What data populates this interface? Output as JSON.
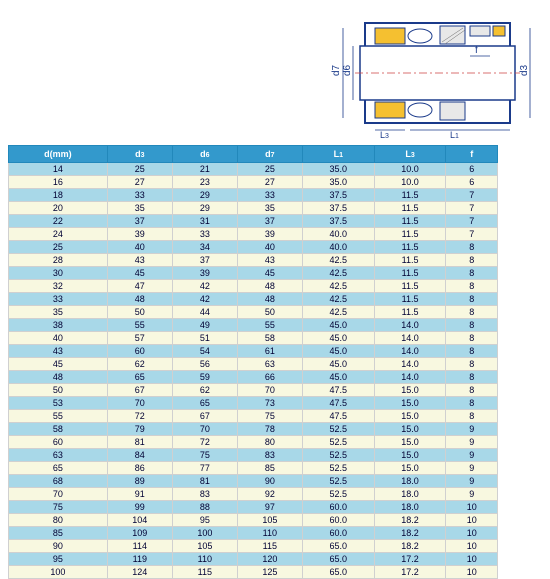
{
  "diagram": {
    "labels": {
      "d7": "d7",
      "d6": "d6",
      "d3": "d3",
      "f": "f",
      "L3": "L3",
      "L1": "L1"
    },
    "colors": {
      "outline": "#1a3a8a",
      "center_line": "#cc4444",
      "yellow_part": "#f5c030",
      "white_fill": "#ffffff",
      "hatch": "#666666"
    }
  },
  "table": {
    "headers": [
      "d(mm)",
      "d3",
      "d6",
      "d7",
      "L1",
      "L3",
      "f"
    ],
    "header_bg": "#3399cc",
    "header_color": "#ffffff",
    "row_blue": "#a8d8e8",
    "row_cream": "#f8f8e0",
    "border_color": "#d0d0d0",
    "text_color": "#000033",
    "rows": [
      [
        "14",
        "25",
        "21",
        "25",
        "35.0",
        "10.0",
        "6"
      ],
      [
        "16",
        "27",
        "23",
        "27",
        "35.0",
        "10.0",
        "6"
      ],
      [
        "18",
        "33",
        "29",
        "33",
        "37.5",
        "11.5",
        "7"
      ],
      [
        "20",
        "35",
        "29",
        "35",
        "37.5",
        "11.5",
        "7"
      ],
      [
        "22",
        "37",
        "31",
        "37",
        "37.5",
        "11.5",
        "7"
      ],
      [
        "24",
        "39",
        "33",
        "39",
        "40.0",
        "11.5",
        "7"
      ],
      [
        "25",
        "40",
        "34",
        "40",
        "40.0",
        "11.5",
        "8"
      ],
      [
        "28",
        "43",
        "37",
        "43",
        "42.5",
        "11.5",
        "8"
      ],
      [
        "30",
        "45",
        "39",
        "45",
        "42.5",
        "11.5",
        "8"
      ],
      [
        "32",
        "47",
        "42",
        "48",
        "42.5",
        "11.5",
        "8"
      ],
      [
        "33",
        "48",
        "42",
        "48",
        "42.5",
        "11.5",
        "8"
      ],
      [
        "35",
        "50",
        "44",
        "50",
        "42.5",
        "11.5",
        "8"
      ],
      [
        "38",
        "55",
        "49",
        "55",
        "45.0",
        "14.0",
        "8"
      ],
      [
        "40",
        "57",
        "51",
        "58",
        "45.0",
        "14.0",
        "8"
      ],
      [
        "43",
        "60",
        "54",
        "61",
        "45.0",
        "14.0",
        "8"
      ],
      [
        "45",
        "62",
        "56",
        "63",
        "45.0",
        "14.0",
        "8"
      ],
      [
        "48",
        "65",
        "59",
        "66",
        "45.0",
        "14.0",
        "8"
      ],
      [
        "50",
        "67",
        "62",
        "70",
        "47.5",
        "15.0",
        "8"
      ],
      [
        "53",
        "70",
        "65",
        "73",
        "47.5",
        "15.0",
        "8"
      ],
      [
        "55",
        "72",
        "67",
        "75",
        "47.5",
        "15.0",
        "8"
      ],
      [
        "58",
        "79",
        "70",
        "78",
        "52.5",
        "15.0",
        "9"
      ],
      [
        "60",
        "81",
        "72",
        "80",
        "52.5",
        "15.0",
        "9"
      ],
      [
        "63",
        "84",
        "75",
        "83",
        "52.5",
        "15.0",
        "9"
      ],
      [
        "65",
        "86",
        "77",
        "85",
        "52.5",
        "15.0",
        "9"
      ],
      [
        "68",
        "89",
        "81",
        "90",
        "52.5",
        "18.0",
        "9"
      ],
      [
        "70",
        "91",
        "83",
        "92",
        "52.5",
        "18.0",
        "9"
      ],
      [
        "75",
        "99",
        "88",
        "97",
        "60.0",
        "18.0",
        "10"
      ],
      [
        "80",
        "104",
        "95",
        "105",
        "60.0",
        "18.2",
        "10"
      ],
      [
        "85",
        "109",
        "100",
        "110",
        "60.0",
        "18.2",
        "10"
      ],
      [
        "90",
        "114",
        "105",
        "115",
        "65.0",
        "18.2",
        "10"
      ],
      [
        "95",
        "119",
        "110",
        "120",
        "65.0",
        "17.2",
        "10"
      ],
      [
        "100",
        "124",
        "115",
        "125",
        "65.0",
        "17.2",
        "10"
      ]
    ]
  }
}
